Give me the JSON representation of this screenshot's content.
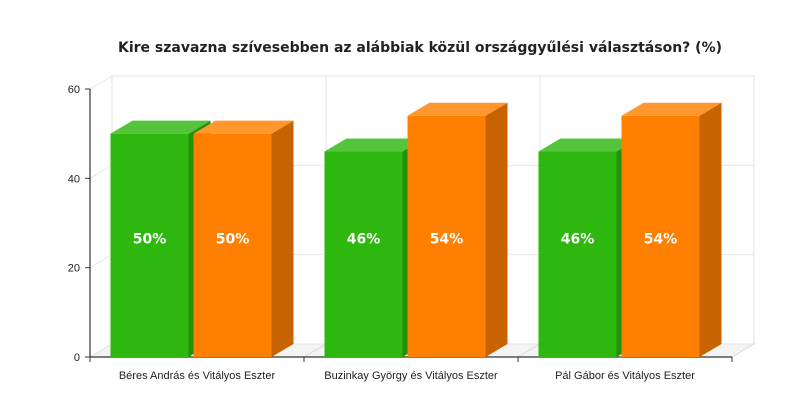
{
  "chart_data": {
    "type": "bar",
    "title": "Kire szavazna szívesebben az alábbiak közül országgyűlési választáson? (%)",
    "xlabel": "",
    "ylabel": "",
    "ylim": [
      0,
      60
    ],
    "yticks": [
      0,
      20,
      40,
      60
    ],
    "grid": true,
    "categories": [
      "Béres András és Vitályos Eszter",
      "Buzinkay György és Vitályos Eszter",
      "Pál Gábor és Vitályos Eszter"
    ],
    "series": [
      {
        "color": "#2eb80f",
        "values": [
          50,
          46,
          46
        ],
        "labels": [
          "50%",
          "46%",
          "46%"
        ]
      },
      {
        "color": "#ff7f00",
        "values": [
          50,
          54,
          54
        ],
        "labels": [
          "50%",
          "54%",
          "54%"
        ]
      }
    ]
  }
}
